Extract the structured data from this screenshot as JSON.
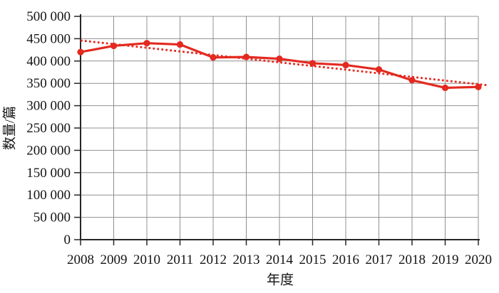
{
  "chart_data": {
    "type": "line",
    "title": "",
    "xlabel": "年度",
    "ylabel": "数量/篇",
    "x": [
      2008,
      2009,
      2010,
      2011,
      2012,
      2013,
      2014,
      2015,
      2016,
      2017,
      2018,
      2019,
      2020
    ],
    "series": [
      {
        "values": [
          420000,
          434000,
          440000,
          437000,
          408000,
          409000,
          405000,
          395000,
          391000,
          381000,
          357000,
          340000,
          342000
        ],
        "color": "#e32a20",
        "marker": "circle",
        "line_style": "solid"
      }
    ],
    "trendline": {
      "line_style": "dotted",
      "color": "#e32a20",
      "x1": 2008,
      "y1": 446000,
      "x2": 2020.25,
      "y2": 346000
    },
    "ylim": [
      0,
      500000
    ],
    "ytick_step": 50000,
    "ytick_labels": [
      "0",
      "50 000",
      "100 000",
      "150 000",
      "200 000",
      "250 000",
      "300 000",
      "350 000",
      "400 000",
      "450 000",
      "500 000"
    ],
    "grid": true,
    "legend_position": "none",
    "colors": {
      "grid": "#909090",
      "axis": "#262626",
      "text": "#141414",
      "background": "#ffffff"
    }
  }
}
